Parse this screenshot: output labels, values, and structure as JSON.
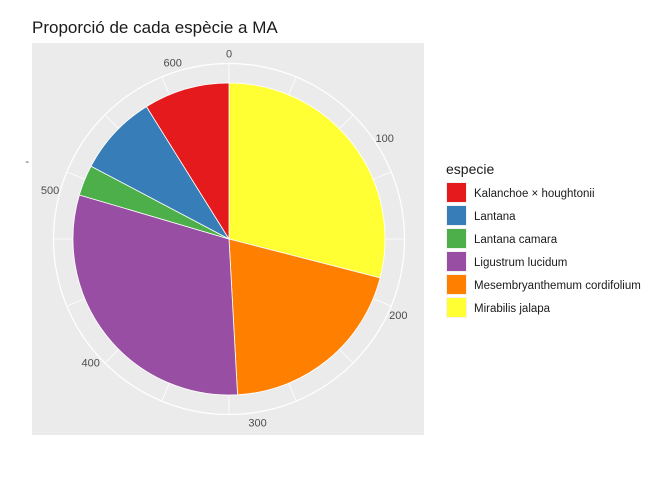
{
  "chart_data": {
    "type": "pie",
    "title": "Proporció de cada espècie a MA",
    "legend_title": "especie",
    "legend_position": "right",
    "categories": [
      "Kalanchoe × houghtonii",
      "Lantana",
      "Lantana camara",
      "Ligustrum lucidum",
      "Mesembryanthemum cordifolium",
      "Mirabilis jalapa"
    ],
    "values": [
      56,
      53,
      20,
      192,
      127,
      183
    ],
    "colors": [
      "#E41A1C",
      "#377EB8",
      "#4DAF4A",
      "#984EA3",
      "#FF7F00",
      "#FFFF33"
    ],
    "stack_order": [
      "Mirabilis jalapa",
      "Mesembryanthemum cordifolium",
      "Ligustrum lucidum",
      "Lantana camara",
      "Lantana",
      "Kalanchoe × houghtonii"
    ],
    "theta_ticks": [
      0,
      100,
      200,
      300,
      400,
      500,
      600
    ],
    "total": 631,
    "y_axis_tick": "-",
    "grid": true,
    "background": "#EBEBEB"
  }
}
